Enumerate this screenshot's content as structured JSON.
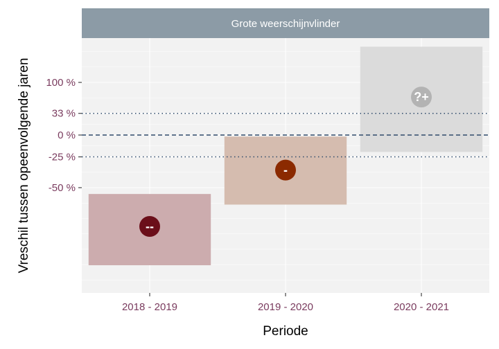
{
  "chart_data": {
    "type": "interval",
    "facet_title": "Grote weerschijnvlinder",
    "xlabel": "Periode",
    "ylabel": "Vreschil tussen opeenvolgende jaren",
    "categories": [
      "2018 - 2019",
      "2019 - 2020",
      "2020 - 2021"
    ],
    "y_scale": "log-ratio",
    "y_ticks": [
      {
        "label": "100 %",
        "value": 100
      },
      {
        "label": "33 %",
        "value": 33
      },
      {
        "label": "0 %",
        "value": 0
      },
      {
        "label": "-25 %",
        "value": -25
      },
      {
        "label": "-50 %",
        "value": -50
      }
    ],
    "reference_lines": [
      {
        "value": 33,
        "style": "dotted"
      },
      {
        "value": 0,
        "style": "dashed"
      },
      {
        "value": -25,
        "style": "dotted"
      }
    ],
    "series": [
      {
        "category": "2018 - 2019",
        "estimate": -70,
        "lower": -82,
        "upper": -54,
        "label": "--",
        "color": "#6b0f1a",
        "band_color": "#c9a8aa"
      },
      {
        "category": "2019 - 2020",
        "estimate": -37,
        "lower": -60,
        "upper": -2,
        "label": "-",
        "color": "#8b2a00",
        "band_color": "#d3b8ab"
      },
      {
        "category": "2020 - 2021",
        "estimate": 65,
        "lower": -20,
        "upper": 220,
        "label": "?+",
        "color": "#b3b3b3",
        "band_color": "#d9d9d9"
      }
    ],
    "grid": true,
    "panel_background": "#f2f2f2",
    "strip_background": "#8c9ba6",
    "reference_line_color": "#2e4a6b"
  }
}
